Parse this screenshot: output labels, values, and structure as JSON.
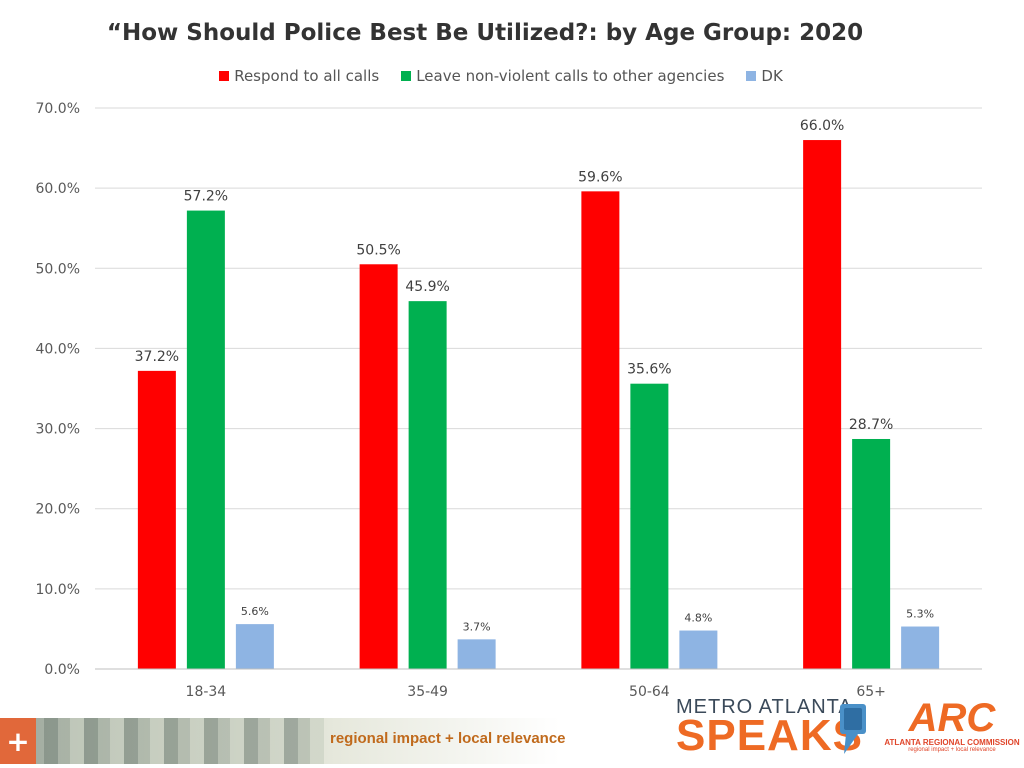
{
  "chart_data": {
    "type": "bar",
    "title": "“How Should Police Best Be Utilized?: by Age Group: 2020",
    "categories": [
      "18-34",
      "35-49",
      "50-64",
      "65+"
    ],
    "series": [
      {
        "name": "Respond to all calls",
        "color": "#ff0000",
        "values": [
          37.2,
          50.5,
          59.6,
          66.0
        ],
        "labels": [
          "37.2%",
          "50.5%",
          "59.6%",
          "66.0%"
        ]
      },
      {
        "name": "Leave non-violent calls to other agencies",
        "color": "#00b050",
        "values": [
          57.2,
          45.9,
          35.6,
          28.7
        ],
        "labels": [
          "57.2%",
          "45.9%",
          "35.6%",
          "28.7%"
        ]
      },
      {
        "name": "DK",
        "color": "#8eb4e3",
        "values": [
          5.6,
          3.7,
          4.8,
          5.3
        ],
        "labels": [
          "5.6%",
          "3.7%",
          "4.8%",
          "5.3%"
        ]
      }
    ],
    "yticks": [
      "0.0%",
      "10.0%",
      "20.0%",
      "30.0%",
      "40.0%",
      "50.0%",
      "60.0%",
      "70.0%"
    ],
    "ylim": [
      0,
      70
    ],
    "xlabel": "",
    "ylabel": "",
    "grid": true,
    "legend_position": "top"
  },
  "footer": {
    "plus": "+",
    "tagline": "regional impact + local relevance",
    "logo_top": "METRO ATLANTA",
    "logo_bottom": "SPEAKS",
    "arc_mark": "ARC",
    "arc_name": "ATLANTA REGIONAL COMMISSION",
    "arc_sub": "regional impact + local relevance"
  }
}
